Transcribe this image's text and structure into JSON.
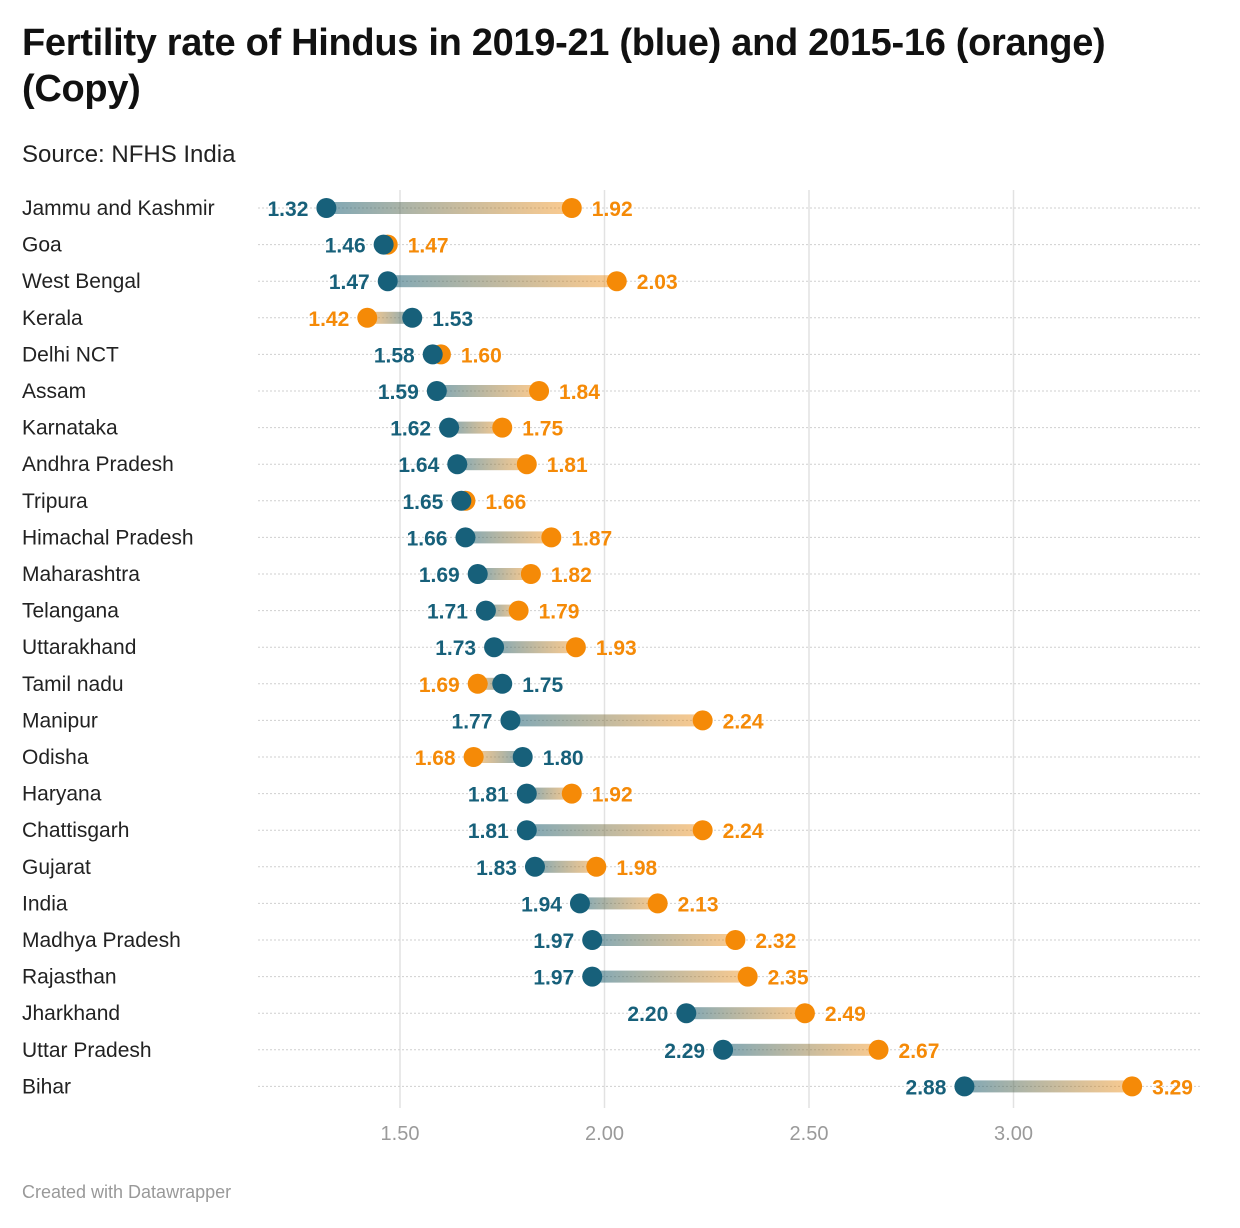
{
  "header": {
    "title": "Fertility rate of Hindus in 2019-21 (blue) and 2015-16 (orange) (Copy)",
    "subtitle": "Source: NFHS India"
  },
  "footer": {
    "credit": "Created with Datawrapper"
  },
  "colors": {
    "series_2019_21": "#17607a",
    "series_2015_16": "#f58a07",
    "gridline": "#e2e2e2",
    "row_dots": "#cfcfcf"
  },
  "chart_data": {
    "type": "dot-range",
    "title": "Fertility rate of Hindus in 2019-21 (blue) and 2015-16 (orange) (Copy)",
    "subtitle": "Source: NFHS India",
    "xlabel": "",
    "ylabel": "",
    "xlim": [
      1.15,
      3.35
    ],
    "xticks": [
      1.5,
      2.0,
      2.5,
      3.0
    ],
    "xtick_labels": [
      "1.50",
      "2.00",
      "2.50",
      "3.00"
    ],
    "grid": "vertical",
    "categories": [
      "Jammu and Kashmir",
      "Goa",
      "West Bengal",
      "Kerala",
      "Delhi NCT",
      "Assam",
      "Karnataka",
      "Andhra Pradesh",
      "Tripura",
      "Himachal Pradesh",
      "Maharashtra",
      "Telangana",
      "Uttarakhand",
      "Tamil nadu",
      "Manipur",
      "Odisha",
      "Haryana",
      "Chattisgarh",
      "Gujarat",
      "India",
      "Madhya Pradesh",
      "Rajasthan",
      "Jharkhand",
      "Uttar Pradesh",
      "Bihar"
    ],
    "series": [
      {
        "name": "2019-21",
        "color": "#17607a",
        "values": [
          1.32,
          1.46,
          1.47,
          1.53,
          1.58,
          1.59,
          1.62,
          1.64,
          1.65,
          1.66,
          1.69,
          1.71,
          1.73,
          1.75,
          1.77,
          1.8,
          1.81,
          1.81,
          1.83,
          1.94,
          1.97,
          1.97,
          2.2,
          2.29,
          2.88
        ]
      },
      {
        "name": "2015-16",
        "color": "#f58a07",
        "values": [
          1.92,
          1.47,
          2.03,
          1.42,
          1.6,
          1.84,
          1.75,
          1.81,
          1.66,
          1.87,
          1.82,
          1.79,
          1.93,
          1.69,
          2.24,
          1.68,
          1.92,
          2.24,
          1.98,
          2.13,
          2.32,
          2.35,
          2.49,
          2.67,
          3.29
        ]
      }
    ]
  }
}
